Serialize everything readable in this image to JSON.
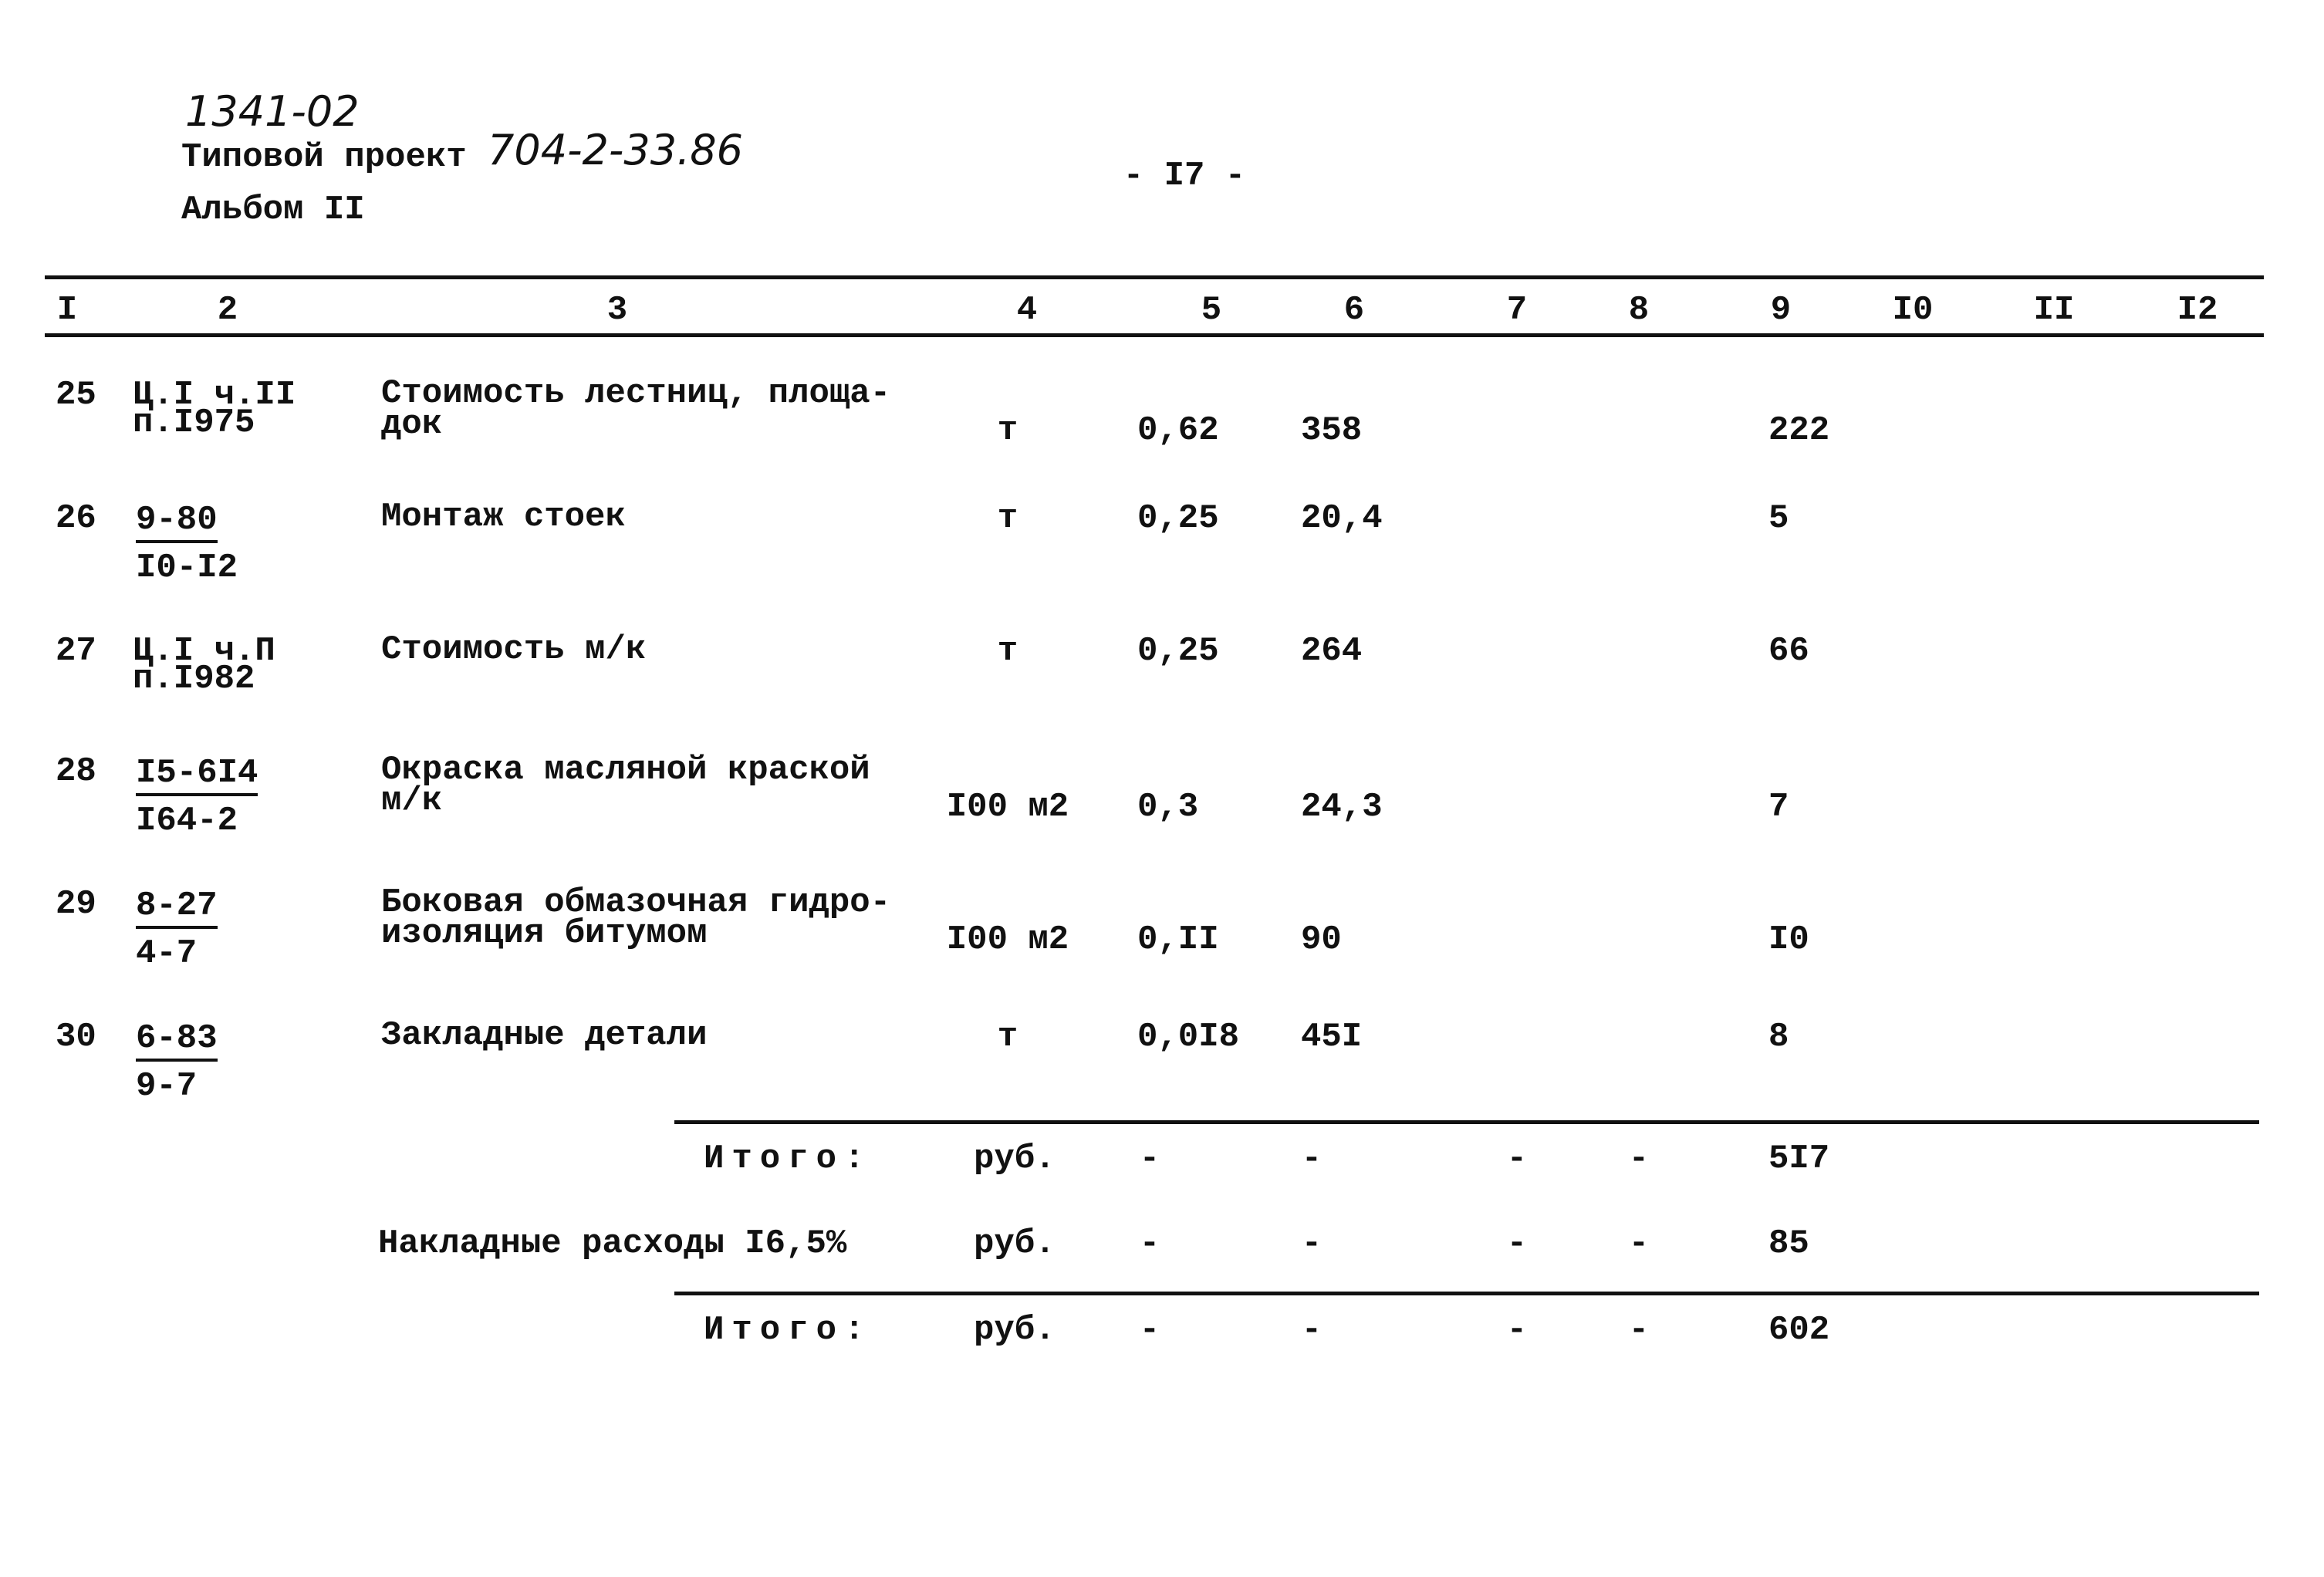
{
  "header": {
    "archive_number": "1341-02",
    "project_label": "Типовой проект",
    "project_number": "704-2-33.86",
    "album": "Альбом II",
    "page": "- I7 -"
  },
  "columns": [
    "I",
    "2",
    "3",
    "4",
    "5",
    "6",
    "7",
    "8",
    "9",
    "I0",
    "II",
    "I2"
  ],
  "rows": [
    {
      "num": "25",
      "code": "Ц.I ч.II",
      "code2": "п.I975",
      "code_type": "text",
      "desc1": "Стоимость лестниц, площа-",
      "desc2": "док",
      "unit": "т",
      "qty": "0,62",
      "price": "358",
      "total": "222"
    },
    {
      "num": "26",
      "code": "9-80",
      "code2": "I0-I2",
      "code_type": "fraction",
      "desc1": "Монтаж стоек",
      "desc2": "",
      "unit": "т",
      "qty": "0,25",
      "price": "20,4",
      "total": "5"
    },
    {
      "num": "27",
      "code": "Ц.I ч.П",
      "code2": "п.I982",
      "code_type": "text",
      "desc1": "Стоимость м/к",
      "desc2": "",
      "unit": "т",
      "qty": "0,25",
      "price": "264",
      "total": "66"
    },
    {
      "num": "28",
      "code": "I5-6I4",
      "code2": "I64-2",
      "code_type": "fraction",
      "desc1": "Окраска масляной краской",
      "desc2": "м/к",
      "unit": "I00 м2",
      "qty": "0,3",
      "price": "24,3",
      "total": "7"
    },
    {
      "num": "29",
      "code": "8-27",
      "code2": "4-7",
      "code_type": "fraction",
      "desc1": "Боковая обмазочная гидро-",
      "desc2": "изоляция битумом",
      "unit": "I00 м2",
      "qty": "0,II",
      "price": "90",
      "total": "I0"
    },
    {
      "num": "30",
      "code": "6-83",
      "code2": "9-7",
      "code_type": "fraction",
      "desc1": "Закладные детали",
      "desc2": "",
      "unit": "т",
      "qty": "0,0I8",
      "price": "45I",
      "total": "8"
    }
  ],
  "summary": [
    {
      "label": "Итого:",
      "unit": "руб.",
      "c5": "-",
      "c6": "-",
      "c7": "-",
      "c8": "-",
      "total": "5I7"
    },
    {
      "label": "Накладные расходы I6,5%",
      "unit": "руб.",
      "c5": "-",
      "c6": "-",
      "c7": "-",
      "c8": "-",
      "total": "85"
    },
    {
      "label": "Итого:",
      "unit": "руб.",
      "c5": "-",
      "c6": "-",
      "c7": "-",
      "c8": "-",
      "total": "602"
    }
  ]
}
